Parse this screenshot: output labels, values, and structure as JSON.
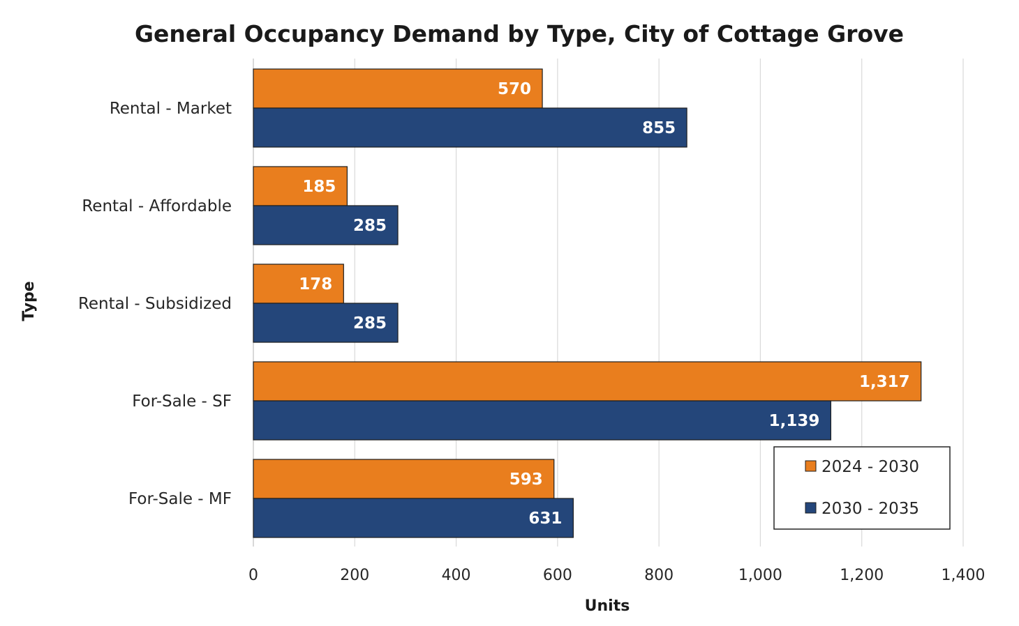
{
  "chart_data": {
    "type": "bar",
    "orientation": "horizontal",
    "title": "General Occupancy Demand by Type, City of Cottage Grove",
    "xlabel": "Units",
    "ylabel": "Type",
    "categories": [
      "Rental - Market",
      "Rental - Affordable",
      "Rental - Subsidized",
      "For-Sale - SF",
      "For-Sale - MF"
    ],
    "series": [
      {
        "name": "2024 - 2030",
        "color": "#E97E1E",
        "values": [
          570,
          185,
          178,
          1317,
          593
        ],
        "labels": [
          "570",
          "185",
          "178",
          "1,317",
          "593"
        ]
      },
      {
        "name": "2030 - 2035",
        "color": "#24467A",
        "values": [
          855,
          285,
          285,
          1139,
          631
        ],
        "labels": [
          "855",
          "285",
          "285",
          "1,139",
          "631"
        ]
      }
    ],
    "xlim": [
      0,
      1400
    ],
    "xticks": [
      0,
      200,
      400,
      600,
      800,
      1000,
      1200,
      1400
    ],
    "xtick_labels": [
      "0",
      "200",
      "400",
      "600",
      "800",
      "1,000",
      "1,200",
      "1,400"
    ],
    "grid": "vertical",
    "legend_position": "bottom-right"
  }
}
